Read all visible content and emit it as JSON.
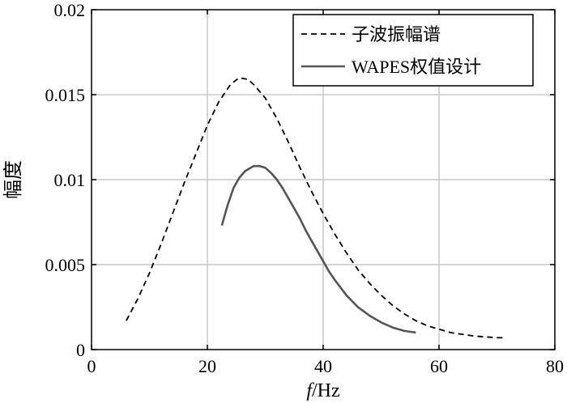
{
  "chart_data": {
    "type": "line",
    "title": "",
    "xlabel": {
      "var": "f",
      "unit": "/Hz"
    },
    "ylabel": "幅度",
    "xlim": [
      0,
      80
    ],
    "ylim": [
      0,
      0.02
    ],
    "x_ticks": [
      0,
      20,
      40,
      60,
      80
    ],
    "y_ticks": [
      0,
      0.005,
      0.01,
      0.015,
      0.02
    ],
    "x_tick_labels": [
      "0",
      "20",
      "40",
      "60",
      "80"
    ],
    "y_tick_labels": [
      "0",
      "0.005",
      "0.01",
      "0.015",
      "0.02"
    ],
    "grid": true,
    "legend_position": "top-right",
    "series": [
      {
        "name": "子波振幅谱",
        "style": "dashed",
        "color": "#000000",
        "x": [
          6,
          8,
          10,
          12,
          14,
          16,
          18,
          20,
          22,
          24,
          25.5,
          27,
          28,
          30,
          32,
          34,
          36,
          38,
          40,
          42,
          44,
          46,
          48,
          50,
          52,
          54,
          56,
          58,
          60,
          62,
          64,
          66,
          68,
          70,
          71
        ],
        "y": [
          0.0017,
          0.003,
          0.0045,
          0.0062,
          0.008,
          0.0098,
          0.0115,
          0.0132,
          0.0146,
          0.0156,
          0.016,
          0.0159,
          0.0156,
          0.0148,
          0.0136,
          0.0122,
          0.0107,
          0.0093,
          0.008,
          0.0068,
          0.0057,
          0.0047,
          0.0039,
          0.0032,
          0.0026,
          0.0021,
          0.0017,
          0.0014,
          0.0012,
          0.001,
          0.0009,
          0.0008,
          0.00075,
          0.0007,
          0.0007
        ]
      },
      {
        "name": "WAPES权值设计",
        "style": "solid",
        "color": "#555555",
        "x": [
          22.5,
          23.5,
          24.5,
          25.5,
          26.5,
          27.5,
          28,
          29,
          30,
          31,
          32,
          33,
          34,
          35,
          36,
          37,
          38,
          39,
          40,
          41,
          42,
          44,
          46,
          48,
          50,
          52,
          54,
          56
        ],
        "y": [
          0.0073,
          0.0085,
          0.0095,
          0.0101,
          0.0105,
          0.0107,
          0.0108,
          0.0108,
          0.0107,
          0.0104,
          0.01,
          0.0095,
          0.0089,
          0.0083,
          0.0077,
          0.007,
          0.0064,
          0.0058,
          0.0052,
          0.0046,
          0.0041,
          0.0032,
          0.0025,
          0.002,
          0.0016,
          0.0013,
          0.0011,
          0.001
        ]
      }
    ]
  }
}
